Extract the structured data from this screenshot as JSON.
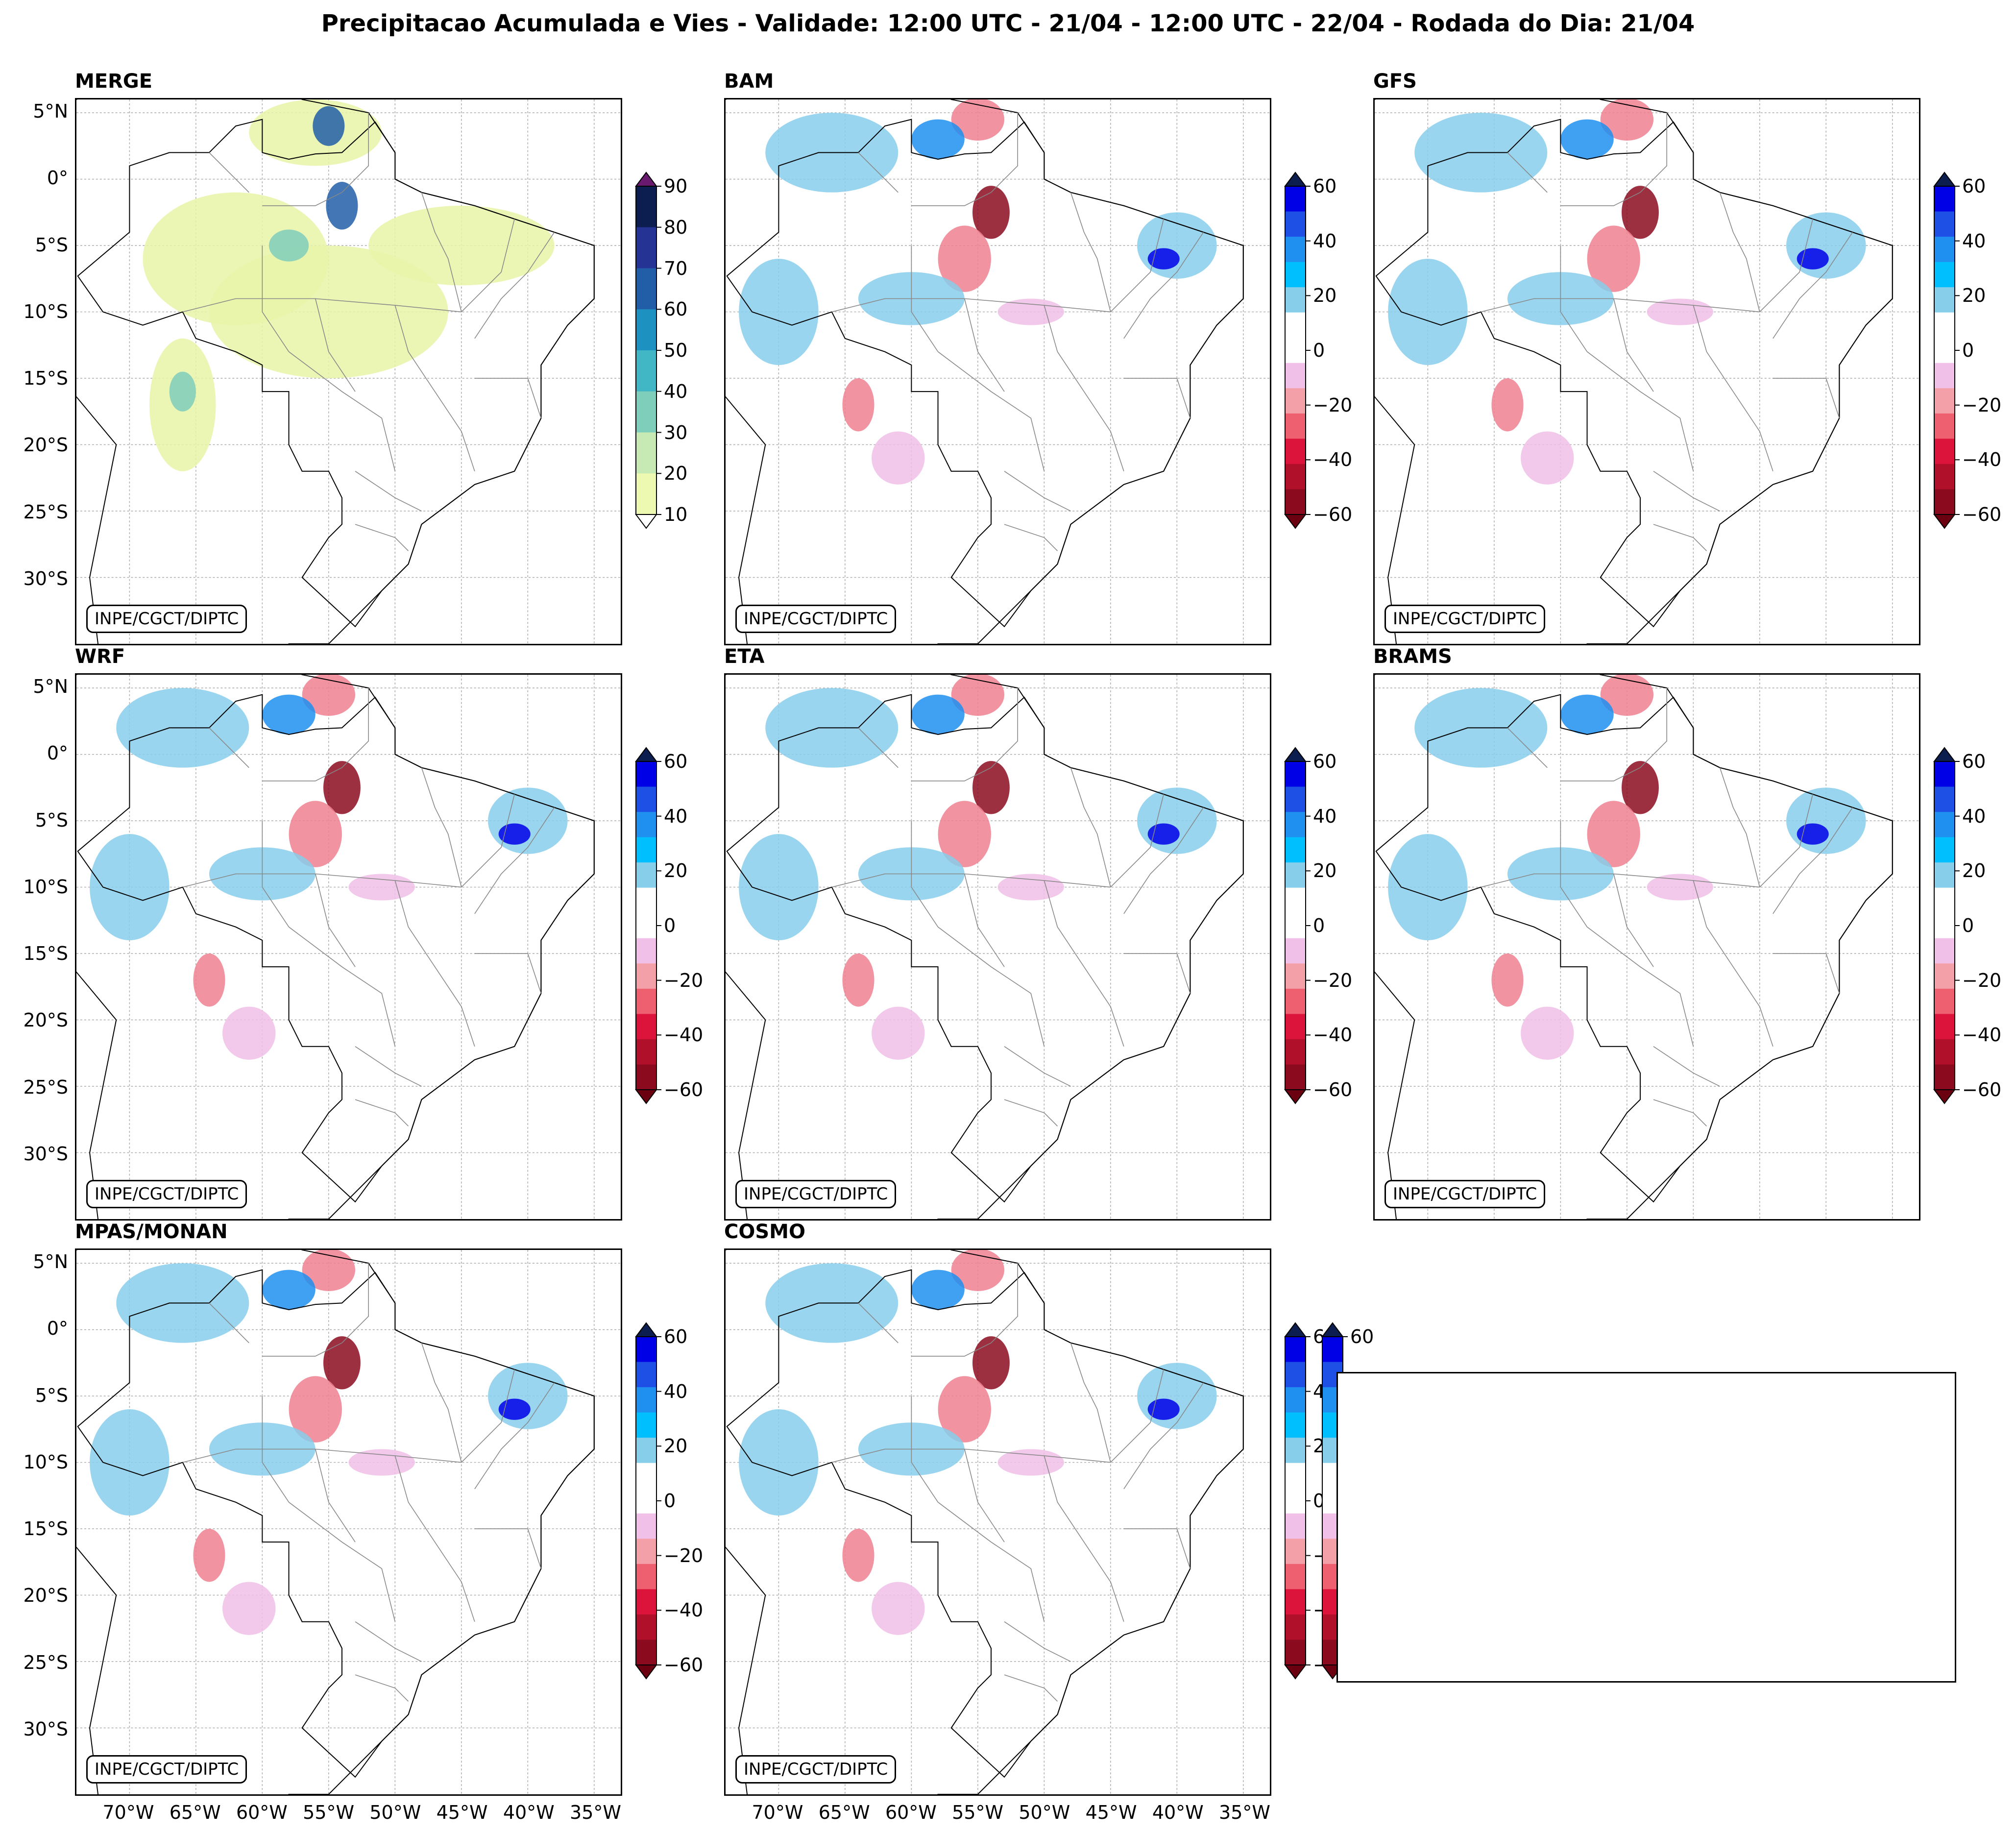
{
  "title": "Precipitacao Acumulada e Vies - Validade: 12:00 UTC - 21/04 - 12:00 UTC - 22/04 - Rodada do Dia: 21/04",
  "credit": "INPE/CGCT/DIPTC",
  "lat_labels": [
    "5°N",
    "0°",
    "5°S",
    "10°S",
    "15°S",
    "20°S",
    "25°S",
    "30°S"
  ],
  "lon_labels": [
    "70°W",
    "65°W",
    "60°W",
    "55°W",
    "50°W",
    "45°W",
    "40°W",
    "35°W"
  ],
  "colorbars": {
    "precip": {
      "ticks": [
        "90",
        "80",
        "70",
        "60",
        "50",
        "40",
        "30",
        "20",
        "10"
      ],
      "colors": [
        "#0c1d4f",
        "#253494",
        "#225ea8",
        "#1d91c0",
        "#41b6c4",
        "#7fcdbb",
        "#c7e9b4",
        "#edf8b1"
      ],
      "over_color": "#6a1a6e",
      "under_color": "#ffffff"
    },
    "bias": {
      "ticks": [
        "60",
        "40",
        "20",
        "0",
        "−20",
        "−40",
        "−60"
      ],
      "colors": [
        "#0000e6",
        "#1e50e6",
        "#1f8ff0",
        "#00bfff",
        "#87ceeb",
        "#ffffff",
        "#ffffff",
        "#f0c0e8",
        "#f4a0a8",
        "#ee6070",
        "#dc143c",
        "#b0102a",
        "#8b0a1e"
      ],
      "over_color": "#0c1d4f",
      "under_color": "#6b0010"
    }
  },
  "panels": [
    {
      "name": "MERGE",
      "kind": "precip"
    },
    {
      "name": "BAM",
      "kind": "bias"
    },
    {
      "name": "GFS",
      "kind": "bias"
    },
    {
      "name": "WRF",
      "kind": "bias"
    },
    {
      "name": "ETA",
      "kind": "bias"
    },
    {
      "name": "BRAMS",
      "kind": "bias"
    },
    {
      "name": "MPAS/MONAN",
      "kind": "bias"
    },
    {
      "name": "COSMO",
      "kind": "bias"
    }
  ],
  "palette": {
    "precip_blob": "#e8f4a8",
    "precip_mid": "#7fcdbb",
    "precip_high": "#225ea8",
    "bias_pos_light": "#87ceeb",
    "bias_pos_mid": "#1f8ff0",
    "bias_pos_high": "#0000e6",
    "bias_neg_light": "#f0c0e8",
    "bias_neg_mid": "#f08090",
    "bias_neg_high": "#8b0a1e"
  }
}
